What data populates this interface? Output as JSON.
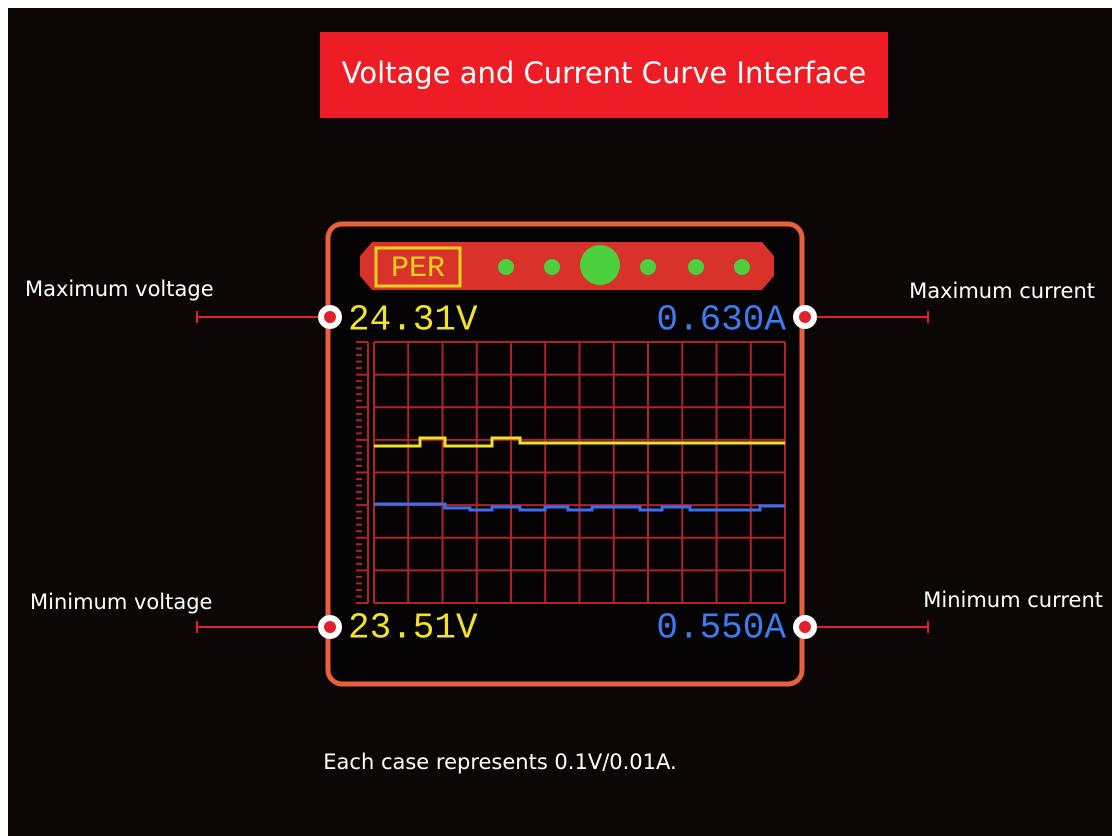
{
  "title": "Voltage and Current Curve Interface",
  "screen": {
    "badge": "PER",
    "max_voltage": "24.31V",
    "max_current": "0.630A",
    "min_voltage": "23.51V",
    "min_current": "0.550A"
  },
  "callouts": {
    "max_voltage": "Maximum voltage",
    "max_current": "Maximum current",
    "min_voltage": "Minimum voltage",
    "min_current": "Minimum current"
  },
  "footer": "Each case represents 0.1V/0.01A."
}
